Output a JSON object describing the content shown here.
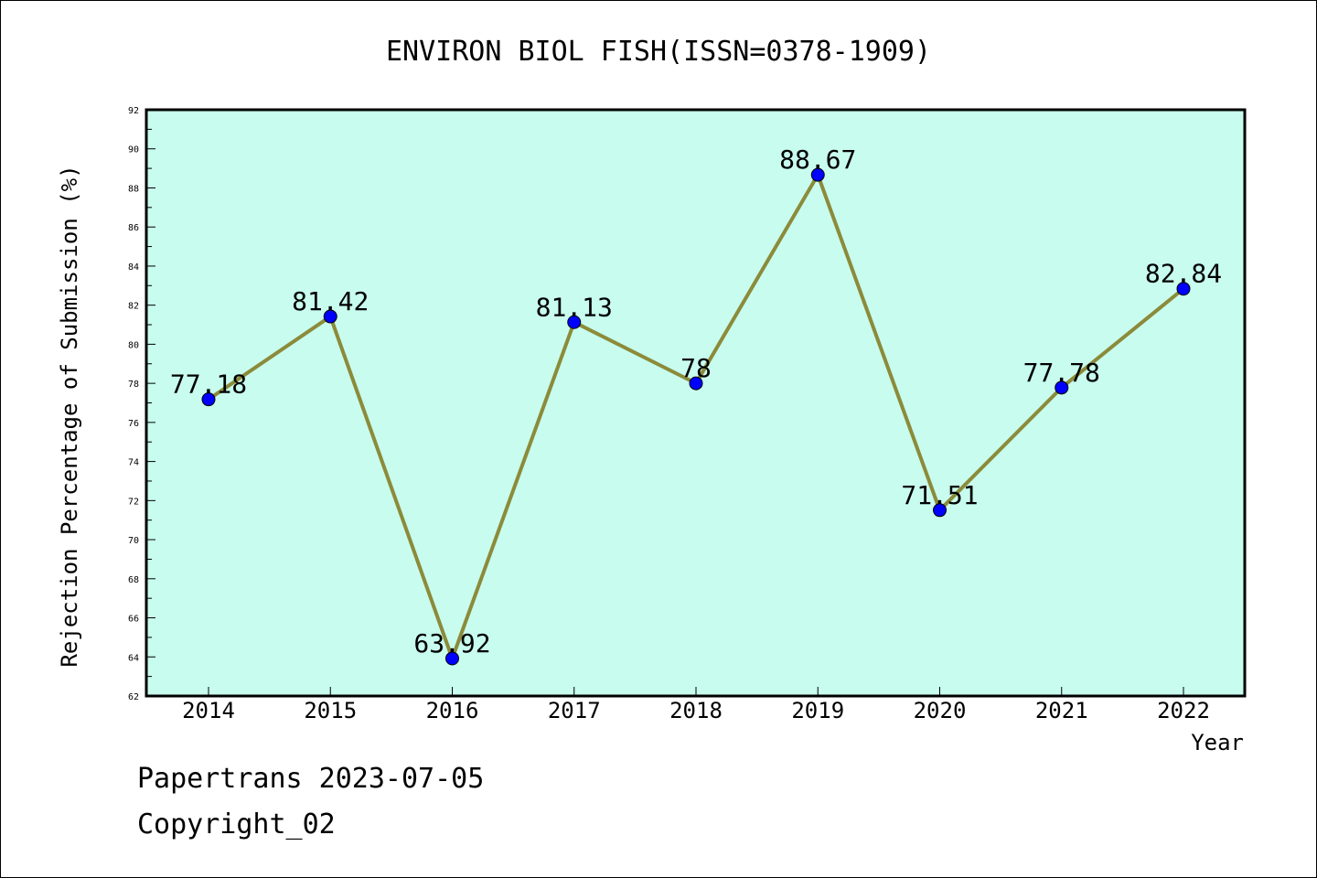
{
  "chart_data": {
    "type": "line",
    "title": "ENVIRON BIOL FISH(ISSN=0378-1909)",
    "xlabel": "Year",
    "ylabel": "Rejection Percentage of Submission (%)",
    "categories": [
      "2014",
      "2015",
      "2016",
      "2017",
      "2018",
      "2019",
      "2020",
      "2021",
      "2022"
    ],
    "values": [
      77.18,
      81.42,
      63.92,
      81.13,
      78,
      88.67,
      71.51,
      77.78,
      82.84
    ],
    "data_labels": [
      "77.18",
      "81.42",
      "63.92",
      "81.13",
      "78",
      "88.67",
      "71.51",
      "77.78",
      "82.84"
    ],
    "ylim": [
      62,
      92
    ],
    "yticks": [
      "62",
      "64",
      "66",
      "68",
      "70",
      "72",
      "74",
      "76",
      "78",
      "80",
      "82",
      "84",
      "86",
      "88",
      "90",
      "92"
    ],
    "grid": false,
    "legend": "none",
    "colors": {
      "plot_background": "#c8fcee",
      "line": "#8b8b3a",
      "marker": "#0000ff"
    }
  },
  "footer": {
    "source": "Papertrans 2023-07-05",
    "copyright": "Copyright_02"
  }
}
